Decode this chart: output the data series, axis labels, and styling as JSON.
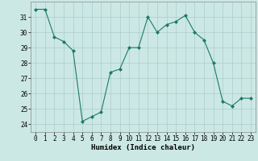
{
  "x": [
    0,
    1,
    2,
    3,
    4,
    5,
    6,
    7,
    8,
    9,
    10,
    11,
    12,
    13,
    14,
    15,
    16,
    17,
    18,
    19,
    20,
    21,
    22,
    23
  ],
  "y": [
    31.5,
    31.5,
    29.7,
    29.4,
    28.8,
    24.2,
    24.5,
    24.8,
    27.4,
    27.6,
    29.0,
    29.0,
    31.0,
    30.0,
    30.5,
    30.7,
    31.1,
    30.0,
    29.5,
    28.0,
    25.5,
    25.2,
    25.7,
    25.7
  ],
  "line_color": "#1a7a6a",
  "marker": "D",
  "marker_size": 2.0,
  "bg_color": "#cce8e4",
  "grid_color": "#aacccc",
  "xlabel": "Humidex (Indice chaleur)",
  "ylim": [
    23.5,
    32.0
  ],
  "xlim": [
    -0.5,
    23.5
  ],
  "yticks": [
    24,
    25,
    26,
    27,
    28,
    29,
    30,
    31
  ],
  "xticks": [
    0,
    1,
    2,
    3,
    4,
    5,
    6,
    7,
    8,
    9,
    10,
    11,
    12,
    13,
    14,
    15,
    16,
    17,
    18,
    19,
    20,
    21,
    22,
    23
  ],
  "tick_fontsize": 5.5,
  "label_fontsize": 6.5
}
